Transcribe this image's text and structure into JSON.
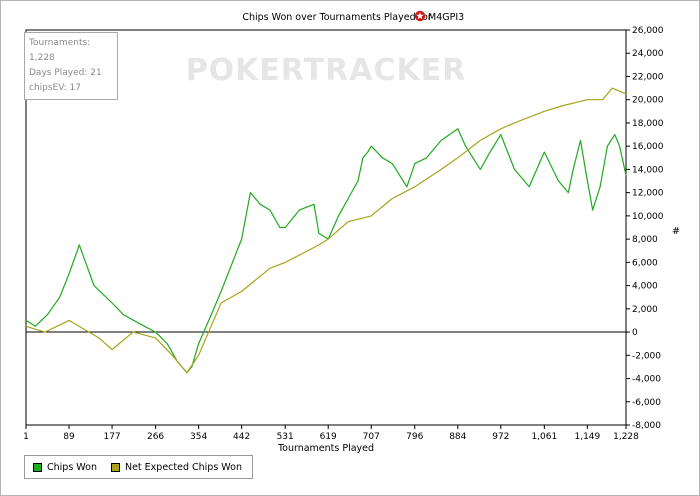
{
  "chart_data": {
    "type": "line",
    "title": "Chips Won over Tournaments Played for",
    "player": "M4GPI3",
    "player_icon": "pokerstars-logo-icon",
    "watermark": "POKERTRACKER",
    "xlabel": "Tournaments Played",
    "ylabel": "#",
    "x_ticks": [
      "1",
      "89",
      "177",
      "266",
      "354",
      "442",
      "531",
      "619",
      "707",
      "796",
      "884",
      "972",
      "1,061",
      "1,149",
      "1,228"
    ],
    "y_ticks": [
      "26,000",
      "24,000",
      "22,000",
      "20,000",
      "18,000",
      "16,000",
      "14,000",
      "12,000",
      "10,000",
      "8,000",
      "6,000",
      "4,000",
      "2,000",
      "0",
      "-2,000",
      "-4,000",
      "-6,000",
      "-8,000"
    ],
    "xlim": [
      1,
      1228
    ],
    "ylim": [
      -8000,
      26000
    ],
    "grid": false,
    "legend_position": "bottom-left",
    "info": [
      "Tournaments: 1,228",
      "Days Played: 21",
      "chipsEV: 17"
    ],
    "series": [
      {
        "name": "Chips Won",
        "color": "#1faa1f",
        "x": [
          1,
          20,
          45,
          70,
          89,
          110,
          140,
          177,
          200,
          230,
          266,
          290,
          310,
          330,
          340,
          354,
          380,
          400,
          442,
          460,
          480,
          500,
          520,
          531,
          560,
          590,
          600,
          619,
          640,
          660,
          680,
          690,
          700,
          707,
          730,
          750,
          780,
          796,
          820,
          850,
          884,
          900,
          930,
          950,
          972,
          1000,
          1030,
          1061,
          1090,
          1110,
          1120,
          1135,
          1149,
          1160,
          1175,
          1190,
          1205,
          1215,
          1228
        ],
        "y": [
          1000,
          500,
          1500,
          3000,
          5000,
          7500,
          4000,
          2500,
          1500,
          800,
          0,
          -1000,
          -2500,
          -3500,
          -3000,
          -1000,
          1500,
          3500,
          8000,
          12000,
          11000,
          10500,
          9000,
          9000,
          10500,
          11000,
          8500,
          8000,
          10000,
          11500,
          13000,
          15000,
          15500,
          16000,
          15000,
          14500,
          12500,
          14500,
          15000,
          16500,
          17500,
          16000,
          14000,
          15500,
          17000,
          14000,
          12500,
          15500,
          13000,
          12000,
          14000,
          16500,
          13000,
          10500,
          12500,
          16000,
          17000,
          16000,
          13500
        ]
      },
      {
        "name": "Net Expected Chips Won",
        "color": "#a8a31a",
        "x": [
          1,
          40,
          89,
          150,
          177,
          220,
          266,
          300,
          330,
          354,
          400,
          442,
          500,
          531,
          600,
          619,
          660,
          707,
          750,
          796,
          850,
          884,
          930,
          972,
          1000,
          1061,
          1100,
          1149,
          1180,
          1200,
          1228
        ],
        "y": [
          500,
          0,
          1000,
          -500,
          -1500,
          0,
          -500,
          -2000,
          -3500,
          -2000,
          2500,
          3500,
          5500,
          6000,
          7500,
          8000,
          9500,
          10000,
          11500,
          12500,
          14000,
          15000,
          16500,
          17500,
          18000,
          19000,
          19500,
          20000,
          20000,
          21000,
          20500
        ]
      }
    ]
  }
}
